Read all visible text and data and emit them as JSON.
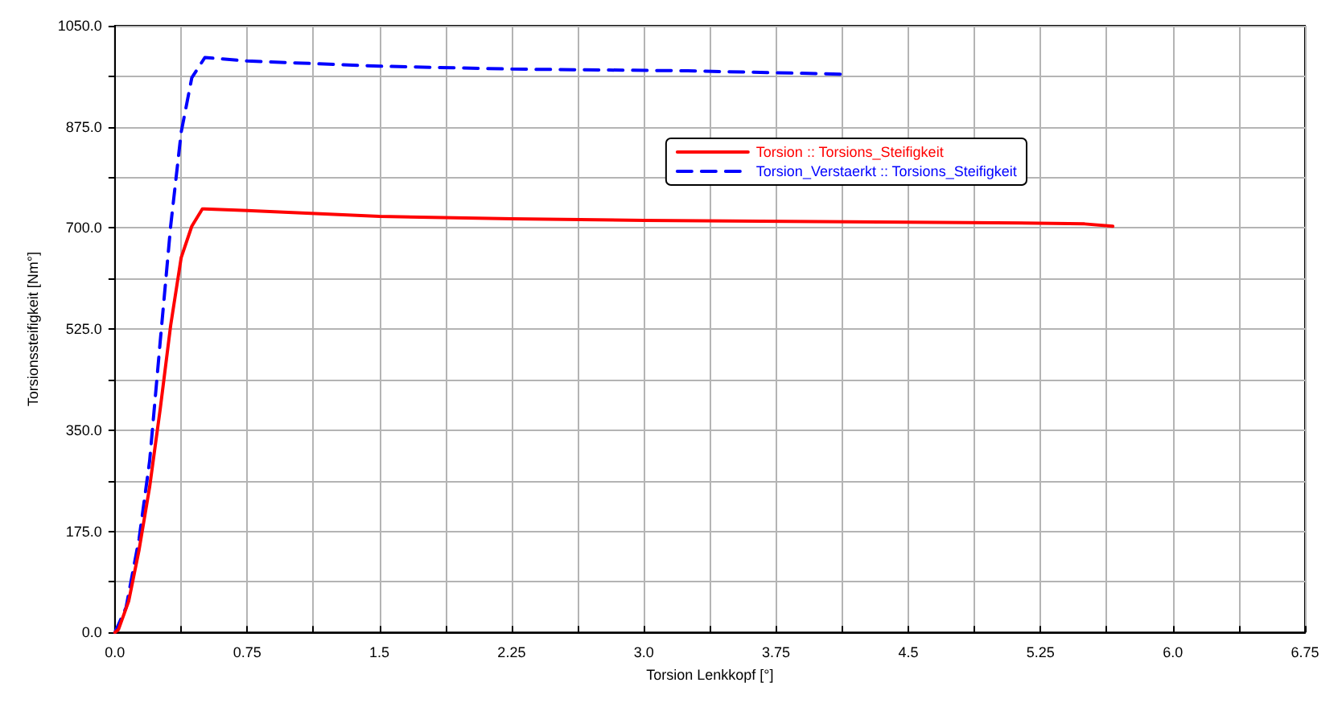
{
  "chart_data": {
    "type": "line",
    "xlabel": "Torsion Lenkkopf [°]",
    "ylabel": "Torsionssteifigkeit [Nm°]",
    "xlim": [
      0,
      6.75
    ],
    "ylim": [
      0,
      1050
    ],
    "xticks": [
      {
        "value": 0,
        "label": "0.0"
      },
      {
        "value": 0.375,
        "label": null
      },
      {
        "value": 0.75,
        "label": "0.75"
      },
      {
        "value": 1.125,
        "label": null
      },
      {
        "value": 1.5,
        "label": "1.5"
      },
      {
        "value": 1.875,
        "label": null
      },
      {
        "value": 2.25,
        "label": "2.25"
      },
      {
        "value": 2.625,
        "label": null
      },
      {
        "value": 3,
        "label": "3.0"
      },
      {
        "value": 3.375,
        "label": null
      },
      {
        "value": 3.75,
        "label": "3.75"
      },
      {
        "value": 4.125,
        "label": null
      },
      {
        "value": 4.5,
        "label": "4.5"
      },
      {
        "value": 4.875,
        "label": null
      },
      {
        "value": 5.25,
        "label": "5.25"
      },
      {
        "value": 5.625,
        "label": null
      },
      {
        "value": 6,
        "label": "6.0"
      },
      {
        "value": 6.375,
        "label": null
      },
      {
        "value": 6.75,
        "label": "6.75"
      }
    ],
    "yticks": [
      {
        "value": 0,
        "label": "0.0"
      },
      {
        "value": 87.5,
        "label": null
      },
      {
        "value": 175,
        "label": "175.0"
      },
      {
        "value": 262.5,
        "label": null
      },
      {
        "value": 350,
        "label": "350.0"
      },
      {
        "value": 437.5,
        "label": null
      },
      {
        "value": 525,
        "label": "525.0"
      },
      {
        "value": 612.5,
        "label": null
      },
      {
        "value": 700,
        "label": "700.0"
      },
      {
        "value": 787.5,
        "label": null
      },
      {
        "value": 875,
        "label": "875.0"
      },
      {
        "value": 962.5,
        "label": null
      },
      {
        "value": 1050,
        "label": "1050.0"
      }
    ],
    "grid": true,
    "legend": "top right",
    "marker": "none",
    "series": [
      {
        "name": "Torsion :: Torsions_Steifigkeit",
        "color": "#ff0000",
        "line_style": "solid",
        "x": [
          0,
          0.02,
          0.078,
          0.137,
          0.197,
          0.257,
          0.316,
          0.376,
          0.436,
          0.496,
          0.75,
          1.5,
          2.25,
          3,
          4,
          5,
          5.5,
          5.66
        ],
        "values": [
          0,
          5,
          54,
          143,
          252,
          387,
          531,
          649,
          703,
          733,
          730,
          720,
          716,
          713,
          711,
          709,
          707,
          703
        ]
      },
      {
        "name": "Torsion_Verstaerkt :: Torsions_Steifigkeit",
        "color": "#0000ff",
        "line_style": "dashed",
        "x": [
          0,
          0.063,
          0.137,
          0.197,
          0.257,
          0.316,
          0.376,
          0.436,
          0.51,
          0.75,
          1.5,
          2.25,
          3.25,
          4.15
        ],
        "values": [
          0,
          43,
          162,
          297,
          504,
          703,
          866,
          960,
          995,
          989,
          980,
          975,
          972,
          966
        ]
      }
    ]
  }
}
